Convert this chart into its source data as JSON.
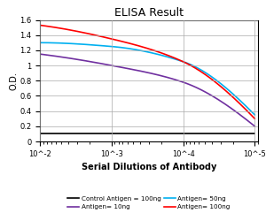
{
  "title": "ELISA Result",
  "ylabel": "O.D.",
  "xlabel": "Serial Dilutions of Antibody",
  "x_values": [
    0.01,
    0.001,
    0.0001,
    1e-05
  ],
  "lines": [
    {
      "label": "Control Antigen = 100ng",
      "color": "#000000",
      "y": [
        0.1,
        0.1,
        0.1,
        0.1
      ]
    },
    {
      "label": "Antigen= 10ng",
      "color": "#7030A0",
      "y": [
        1.15,
        1.0,
        0.78,
        0.2
      ]
    },
    {
      "label": "Antigen= 50ng",
      "color": "#00B0F0",
      "y": [
        1.3,
        1.25,
        1.05,
        0.35
      ]
    },
    {
      "label": "Antigen= 100ng",
      "color": "#FF0000",
      "y": [
        1.53,
        1.35,
        1.05,
        0.3
      ]
    }
  ],
  "ylim": [
    0,
    1.6
  ],
  "yticks": [
    0,
    0.2,
    0.4,
    0.6,
    0.8,
    1.0,
    1.2,
    1.4,
    1.6
  ],
  "xtick_labels": [
    "10^-2",
    "10^-3",
    "10^-4",
    "10^-5"
  ],
  "background_color": "#ffffff",
  "grid_color": "#aaaaaa"
}
